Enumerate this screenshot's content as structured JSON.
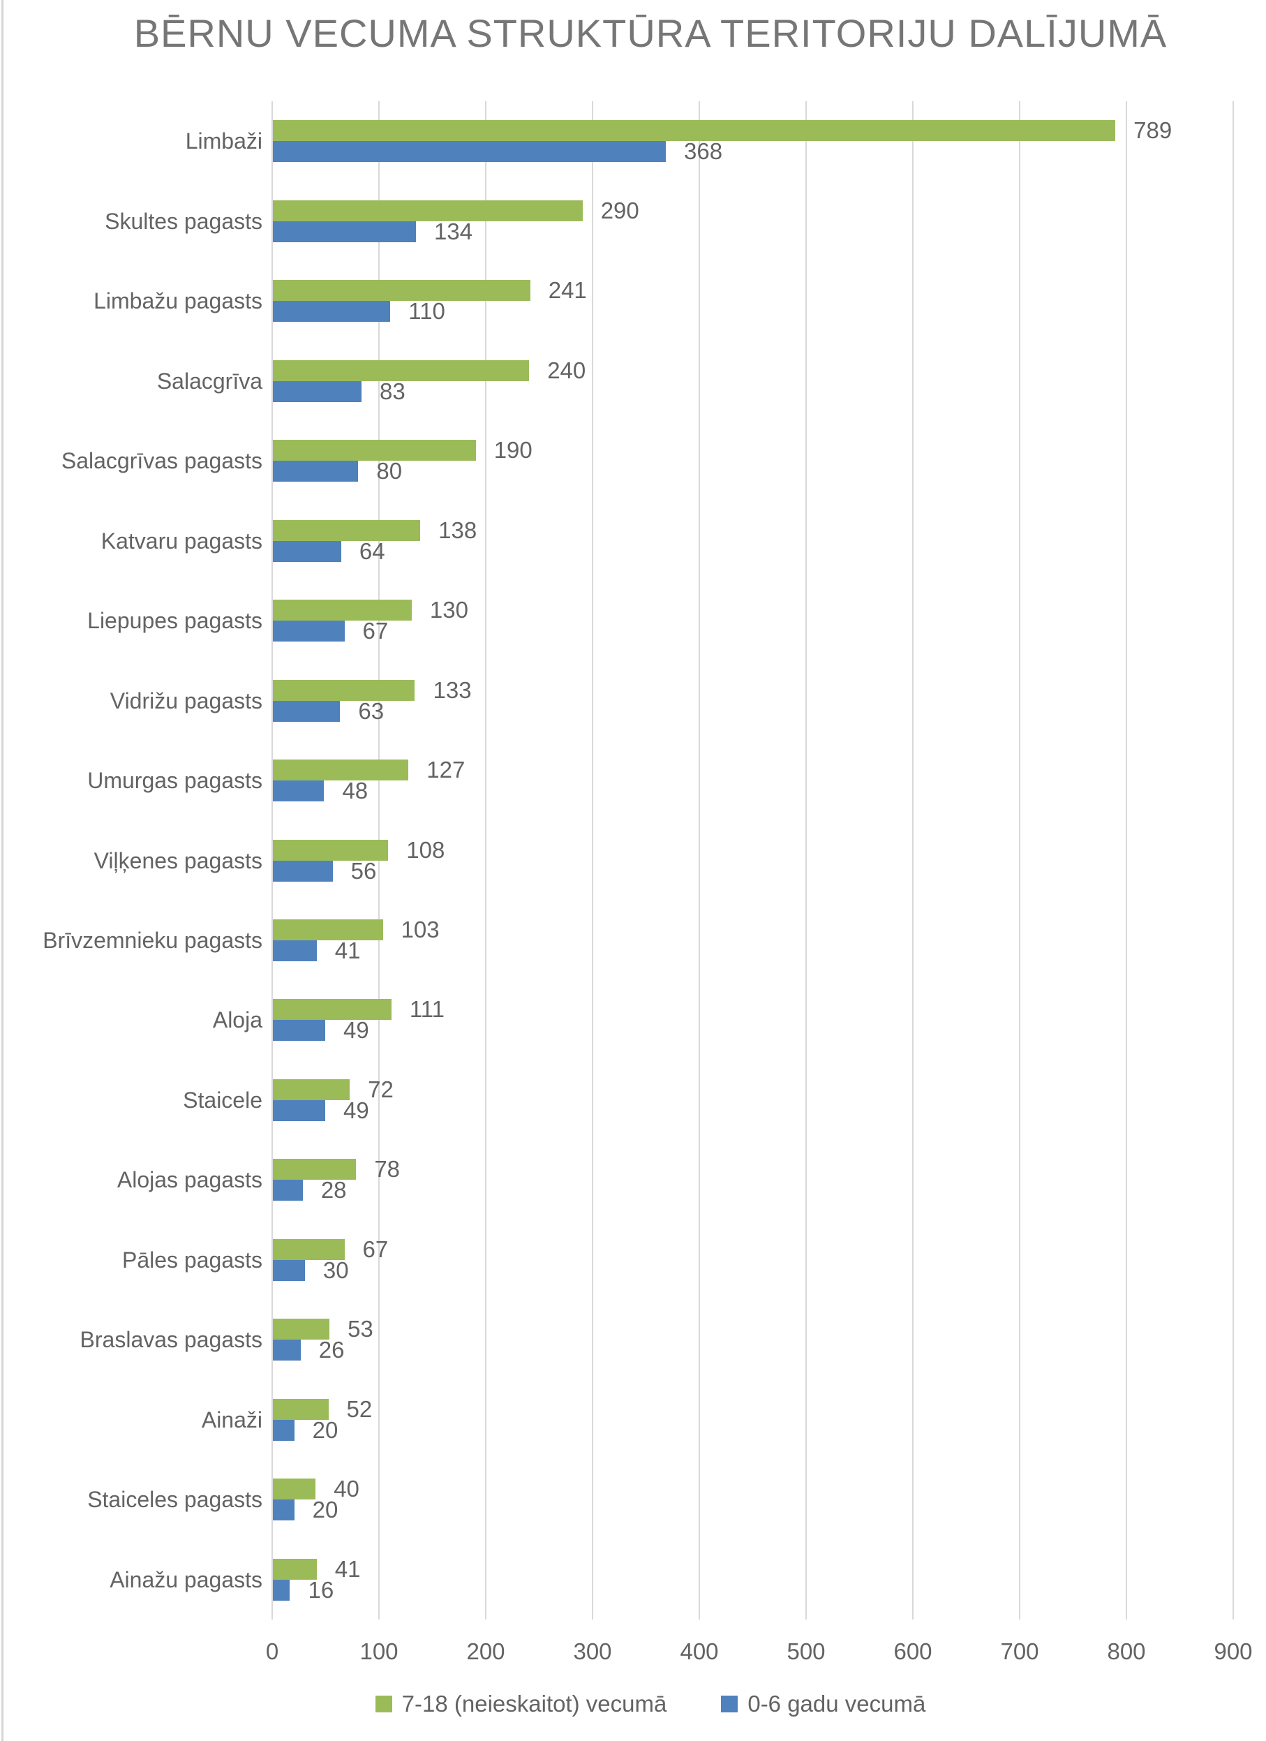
{
  "title": "BĒRNU VECUMA STRUKTŪRA TERITORIJU DALĪJUMĀ",
  "colors": {
    "series_age_7_18": "#9BBB59",
    "series_age_0_6": "#4F81BD",
    "gridline": "#D9D9D9",
    "label_text": "#636363",
    "title_text": "#767676",
    "frame_border": "#D6D6D6",
    "background": "#FFFFFF"
  },
  "chart_data": {
    "type": "bar",
    "orientation": "horizontal",
    "title": "BĒRNU VECUMA STRUKTŪRA TERITORIJU DALĪJUMĀ",
    "categories": [
      "Limbaži",
      "Skultes pagasts",
      "Limbažu pagasts",
      "Salacgrīva",
      "Salacgrīvas pagasts",
      "Katvaru pagasts",
      "Liepupes pagasts",
      "Vidrižu pagasts",
      "Umurgas pagasts",
      "Viļķenes pagasts",
      "Brīvzemnieku pagasts",
      "Aloja",
      "Staicele",
      "Alojas pagasts",
      "Pāles pagasts",
      "Braslavas pagasts",
      "Ainaži",
      "Staiceles pagasts",
      "Ainažu pagasts"
    ],
    "series": [
      {
        "name": "7-18 (neieskaitot) vecumā",
        "color": "#9BBB59",
        "values": [
          789,
          290,
          241,
          240,
          190,
          138,
          130,
          133,
          127,
          108,
          103,
          111,
          72,
          78,
          67,
          53,
          52,
          40,
          41
        ]
      },
      {
        "name": "0-6 gadu vecumā",
        "color": "#4F81BD",
        "values": [
          368,
          134,
          110,
          83,
          80,
          64,
          67,
          63,
          48,
          56,
          41,
          49,
          49,
          28,
          30,
          26,
          20,
          20,
          16
        ]
      }
    ],
    "xlim": [
      0,
      900
    ],
    "xticks": [
      0,
      100,
      200,
      300,
      400,
      500,
      600,
      700,
      800,
      900
    ],
    "xlabel": "",
    "ylabel": "",
    "grid": true,
    "data_labels": true,
    "legend_position": "bottom"
  }
}
